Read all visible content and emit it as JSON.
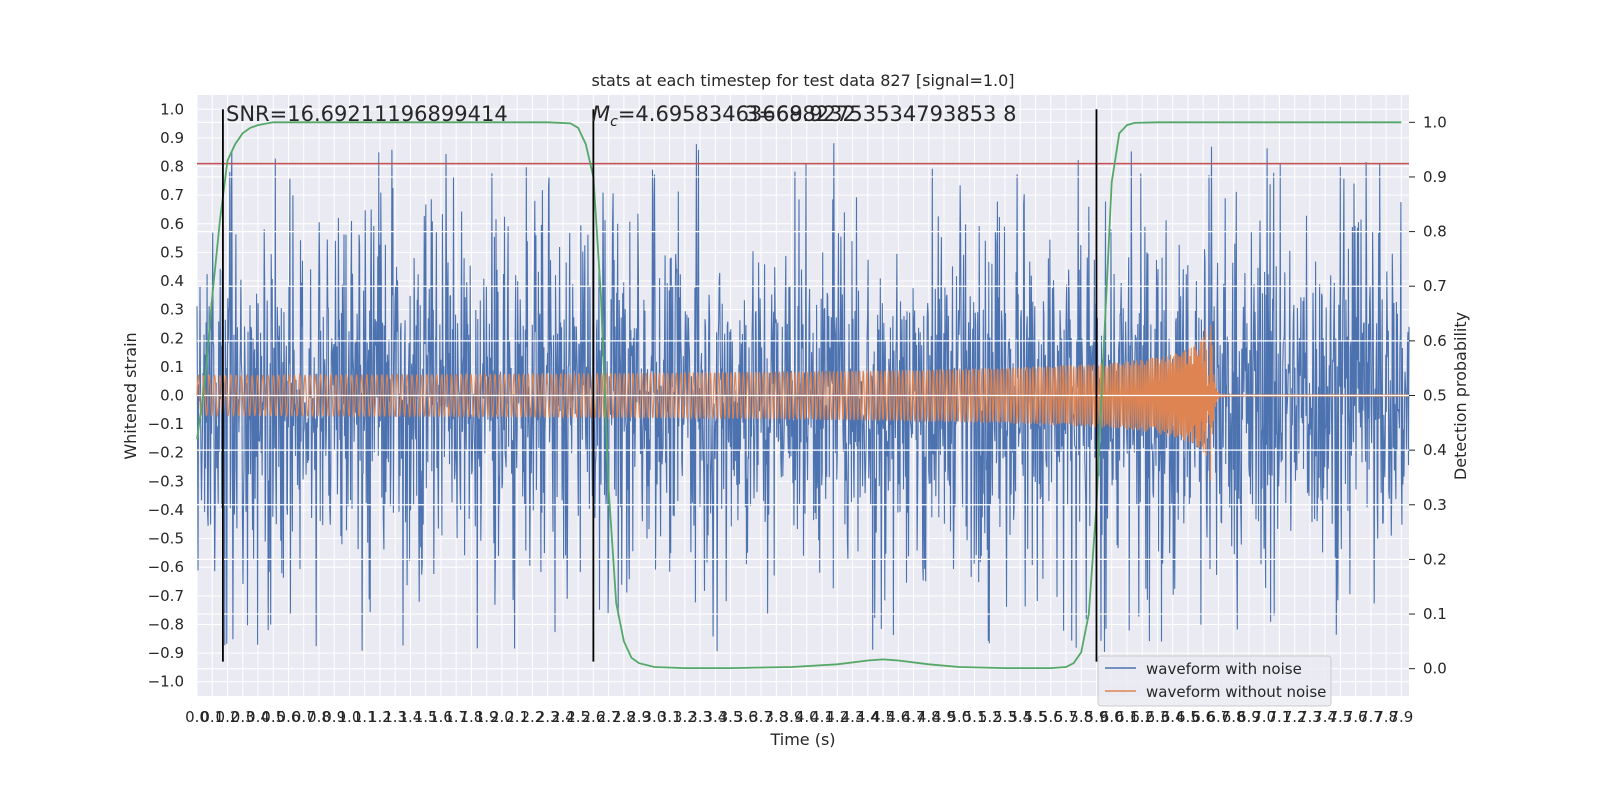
{
  "chart_data": {
    "type": "line",
    "title": "stats at each timestep for test data 827 [signal=1.0]",
    "xlabel": "Time (s)",
    "ylabel": "Whitened strain",
    "y2label": "Detection probability",
    "xlim": [
      0.0,
      7.95
    ],
    "ylim": [
      -1.05,
      1.05
    ],
    "y2lim": [
      -0.05,
      1.05
    ],
    "x_ticks": [
      "0.0",
      "0.1",
      "0.2",
      "0.3",
      "0.4",
      "0.5",
      "0.6",
      "0.7",
      "0.8",
      "0.9",
      "1.0",
      "1.1",
      "1.2",
      "1.3",
      "1.4",
      "1.5",
      "1.6",
      "1.7",
      "1.8",
      "1.9",
      "2.0",
      "2.1",
      "2.2",
      "2.3",
      "2.4",
      "2.5",
      "2.6",
      "2.7",
      "2.8",
      "2.9",
      "3.0",
      "3.1",
      "3.2",
      "3.3",
      "3.4",
      "3.5",
      "3.6",
      "3.7",
      "3.8",
      "3.9",
      "4.0",
      "4.1",
      "4.2",
      "4.3",
      "4.4",
      "4.5",
      "4.6",
      "4.7",
      "4.8",
      "4.9",
      "5.0",
      "5.1",
      "5.2",
      "5.3",
      "5.4",
      "5.5",
      "5.6",
      "5.7",
      "5.8",
      "5.9",
      "6.0",
      "6.1",
      "6.2",
      "6.3",
      "6.4",
      "6.5",
      "6.6",
      "6.7",
      "6.8",
      "6.9",
      "7.0",
      "7.1",
      "7.2",
      "7.3",
      "7.4",
      "7.5",
      "7.6",
      "7.7",
      "7.8",
      "7.9"
    ],
    "y_ticks": [
      "1.0",
      "0.9",
      "0.8",
      "0.7",
      "0.6",
      "0.5",
      "0.4",
      "0.3",
      "0.2",
      "0.1",
      "0.0",
      "−0.1",
      "−0.2",
      "−0.3",
      "−0.4",
      "−0.5",
      "−0.6",
      "−0.7",
      "−0.8",
      "−0.9",
      "−1.0"
    ],
    "y2_ticks": [
      "1.0",
      "0.9",
      "0.8",
      "0.7",
      "0.6",
      "0.5",
      "0.4",
      "0.3",
      "0.2",
      "0.1",
      "0.0"
    ],
    "annotations": {
      "snr": "SNR=16.69211196899414",
      "mc_symbol": "M",
      "mc_sub": "c",
      "mc_value": "=4.695834636688232",
      "overlap": "3=69.92753534793853 8"
    },
    "series": [
      {
        "name": "waveform with noise",
        "color": "#4c72b0",
        "noise_envelope": 0.9,
        "axis": "left"
      },
      {
        "name": "waveform without noise",
        "color": "#dd8452",
        "merger_time": 6.65,
        "peak_amplitude": 0.31,
        "start_amplitude": 0.035,
        "axis": "left"
      },
      {
        "name": "detection probability",
        "color": "#55a868",
        "axis": "right",
        "x": [
          0.0,
          0.05,
          0.1,
          0.15,
          0.2,
          0.25,
          0.3,
          0.35,
          0.4,
          0.5,
          0.6,
          0.8,
          1.0,
          1.5,
          2.0,
          2.3,
          2.45,
          2.5,
          2.55,
          2.6,
          2.65,
          2.7,
          2.75,
          2.8,
          2.85,
          2.9,
          3.0,
          3.2,
          3.5,
          3.9,
          4.2,
          4.4,
          4.5,
          4.6,
          4.8,
          5.0,
          5.3,
          5.6,
          5.7,
          5.75,
          5.8,
          5.85,
          5.9,
          5.95,
          6.0,
          6.05,
          6.1,
          6.15,
          6.3,
          6.5,
          7.0,
          7.5,
          7.9
        ],
        "y": [
          0.42,
          0.52,
          0.68,
          0.82,
          0.93,
          0.96,
          0.98,
          0.99,
          0.995,
          1.0,
          1.0,
          1.0,
          1.0,
          1.0,
          1.0,
          1.0,
          0.998,
          0.99,
          0.96,
          0.9,
          0.68,
          0.33,
          0.12,
          0.05,
          0.02,
          0.01,
          0.003,
          0.001,
          0.001,
          0.003,
          0.008,
          0.015,
          0.017,
          0.015,
          0.008,
          0.003,
          0.001,
          0.001,
          0.003,
          0.01,
          0.03,
          0.1,
          0.3,
          0.6,
          0.89,
          0.98,
          0.995,
          0.999,
          1.0,
          1.0,
          1.0,
          1.0,
          1.0
        ]
      }
    ],
    "threshold_line": {
      "value": 0.81,
      "axis": "left",
      "color": "#c44e52"
    },
    "vertical_markers": [
      0.17,
      2.6,
      5.9
    ],
    "legend": {
      "placement": "bottom-right",
      "entries": [
        "waveform with noise",
        "waveform without noise"
      ]
    },
    "grid": true,
    "style": {
      "background": "#eaeaf2",
      "grid_color": "#ffffff",
      "marker_color": "#000000"
    }
  }
}
